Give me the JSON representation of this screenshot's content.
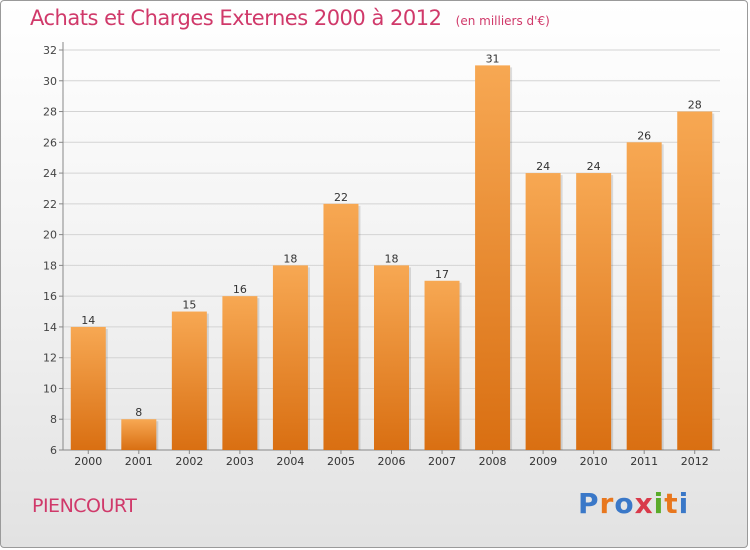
{
  "header": {
    "title": "Achats et Charges Externes 2000 à 2012",
    "subtitle": "(en milliers d'€)"
  },
  "footer": {
    "commune": "PIENCOURT",
    "logo_text": "Proxiti",
    "logo_colors": [
      "#3a78c8",
      "#e8771e",
      "#3a78c8",
      "#d93a4a",
      "#5aab2a",
      "#e8771e",
      "#3a78c8"
    ]
  },
  "colors": {
    "bar_top": "#f7a853",
    "bar_bottom": "#d96f12",
    "title": "#d0396a"
  },
  "chart_data": {
    "type": "bar",
    "title": "Achats et Charges Externes 2000 à 2012",
    "subtitle": "(en milliers d'€)",
    "categories": [
      "2000",
      "2001",
      "2002",
      "2003",
      "2004",
      "2005",
      "2006",
      "2007",
      "2008",
      "2009",
      "2010",
      "2011",
      "2012"
    ],
    "values": [
      14,
      8,
      15,
      16,
      18,
      22,
      18,
      17,
      31,
      24,
      24,
      26,
      28
    ],
    "data_labels": [
      "14",
      "8",
      "15",
      "16",
      "18",
      "22",
      "18",
      "17",
      "31",
      "24",
      "24",
      "26",
      "28"
    ],
    "yticks": [
      "6",
      "8",
      "10",
      "12",
      "14",
      "16",
      "18",
      "20",
      "22",
      "24",
      "26",
      "28",
      "30",
      "32"
    ],
    "ylim": [
      6,
      32
    ],
    "xlabel": "",
    "ylabel": "",
    "grid": true
  }
}
